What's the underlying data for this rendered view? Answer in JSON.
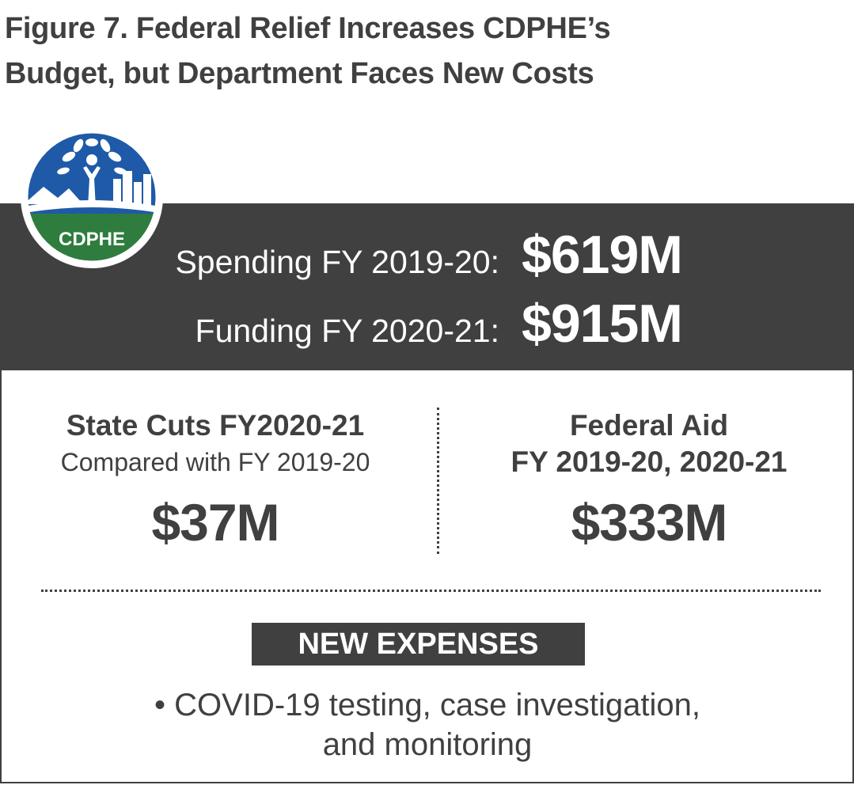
{
  "figure": {
    "title_line1": "Figure 7. Federal Relief Increases CDPHE’s",
    "title_line2": "Budget, but Department Faces New Costs"
  },
  "logo": {
    "text": "CDPHE",
    "colors": {
      "blue": "#1e5aa8",
      "green": "#2e7d3e",
      "ring": "#ffffff"
    }
  },
  "summary": {
    "spending_label": "Spending FY 2019-20:",
    "spending_value": "$619M",
    "funding_label": "Funding FY 2020-21:",
    "funding_value": "$915M"
  },
  "state_cuts": {
    "heading": "State Cuts FY2020-21",
    "subheading": "Compared with FY 2019-20",
    "value": "$37M"
  },
  "federal_aid": {
    "heading_line1": "Federal Aid",
    "heading_line2": "FY 2019-20, 2020-21",
    "value": "$333M"
  },
  "new_expenses": {
    "heading": "NEW EXPENSES",
    "item_line1": "• COVID-19 testing, case investigation,",
    "item_line2": "and monitoring"
  },
  "colors": {
    "dark": "#404041",
    "white": "#ffffff"
  }
}
